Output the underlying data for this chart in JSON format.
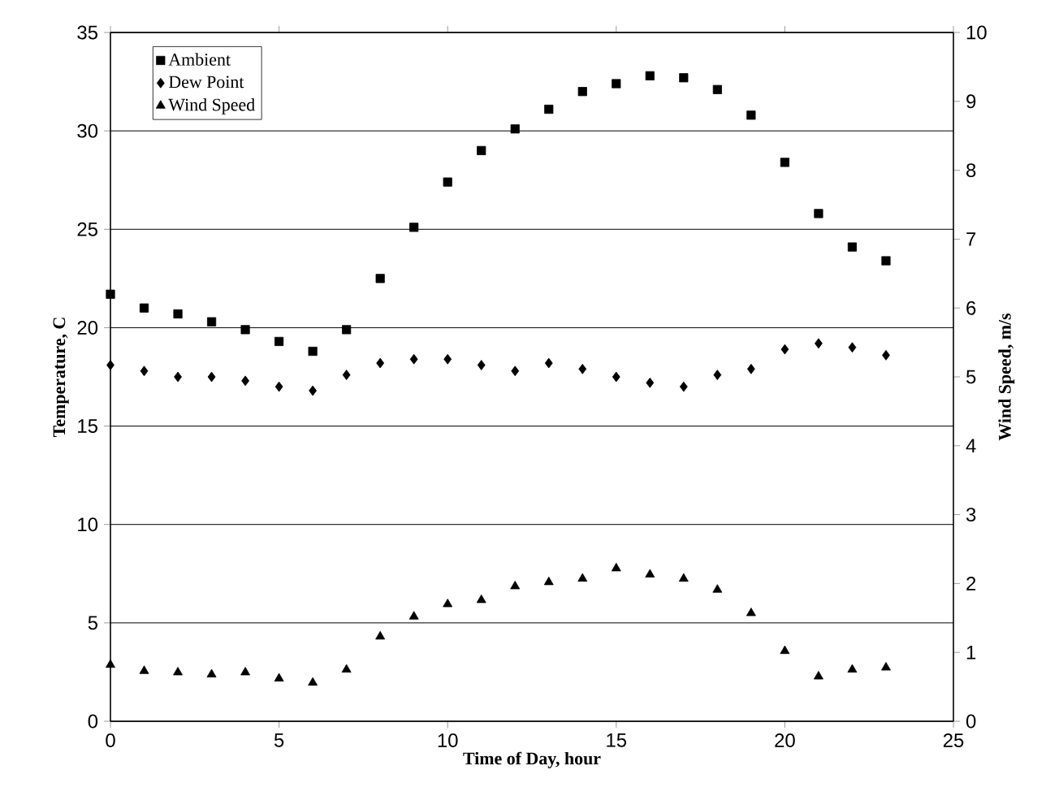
{
  "chart_data": {
    "type": "scatter",
    "xlabel": "Time of Day, hour",
    "ylabel": "Temperature, C",
    "y2label": "Wind Speed, m/s",
    "x": [
      0,
      1,
      2,
      3,
      4,
      5,
      6,
      7,
      8,
      9,
      10,
      11,
      12,
      13,
      14,
      15,
      16,
      17,
      18,
      19,
      20,
      21,
      22,
      23
    ],
    "series": [
      {
        "name": "Ambient",
        "color": "#000000",
        "marker": "square",
        "values": [
          21.7,
          21.0,
          20.7,
          20.3,
          19.9,
          19.3,
          18.8,
          19.9,
          22.5,
          25.1,
          27.4,
          29.0,
          30.1,
          31.1,
          32.0,
          32.4,
          32.8,
          32.7,
          32.1,
          30.8,
          28.4,
          25.8,
          24.1,
          23.4
        ]
      },
      {
        "name": "Dew Point",
        "color": "#000000",
        "marker": "diamond",
        "values": [
          18.1,
          17.8,
          17.5,
          17.5,
          17.3,
          17.0,
          16.8,
          17.6,
          18.2,
          18.4,
          18.4,
          18.1,
          17.8,
          18.2,
          17.9,
          17.5,
          17.2,
          17.0,
          17.6,
          17.9,
          18.9,
          19.2,
          19.0,
          18.6
        ]
      },
      {
        "name": "Wind Speed",
        "color": "#000000",
        "marker": "triangle",
        "axis": "y2",
        "values": [
          0.82,
          0.73,
          0.71,
          0.68,
          0.71,
          0.62,
          0.56,
          0.75,
          1.23,
          1.52,
          1.7,
          1.76,
          1.96,
          2.02,
          2.07,
          2.22,
          2.13,
          2.07,
          1.91,
          1.57,
          1.02,
          0.65,
          0.75,
          0.78
        ]
      }
    ],
    "xlim": [
      0,
      25
    ],
    "xticks": [
      0,
      5,
      10,
      15,
      20,
      25
    ],
    "ylim": [
      0,
      35
    ],
    "yticks": [
      0,
      5,
      10,
      15,
      20,
      25,
      30,
      35
    ],
    "y2lim": [
      0,
      10
    ],
    "y2ticks": [
      0,
      1,
      2,
      3,
      4,
      5,
      6,
      7,
      8,
      9,
      10
    ],
    "grid": "y",
    "legend": "top left"
  }
}
